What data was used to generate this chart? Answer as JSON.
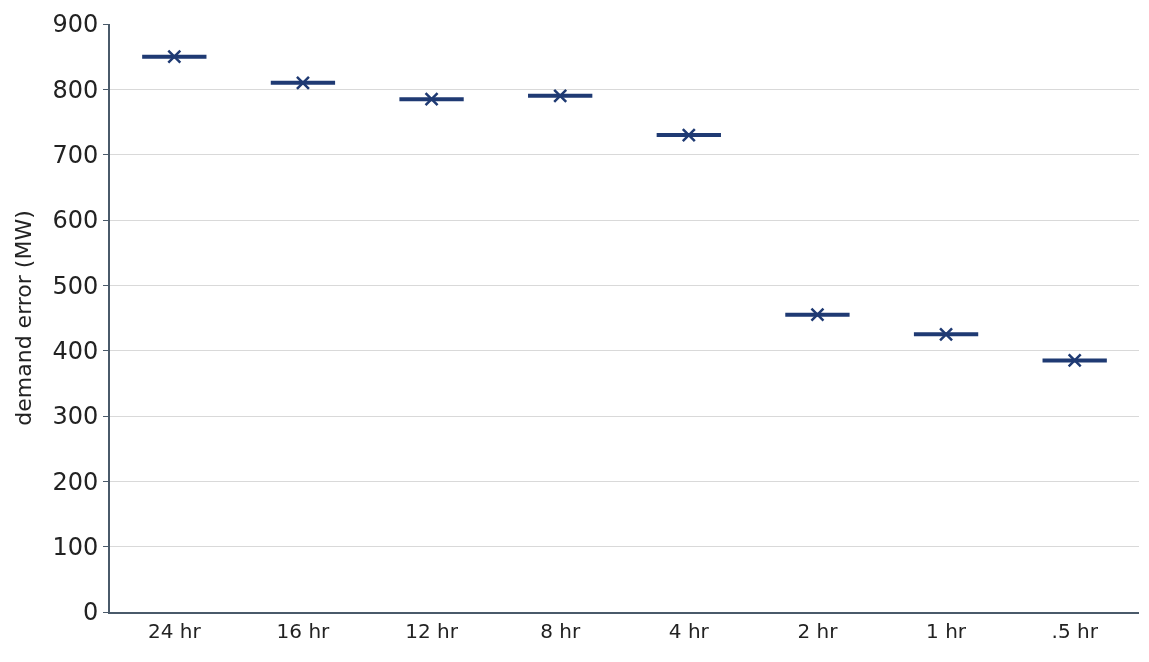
{
  "chart_data": {
    "type": "box",
    "ylabel": "demand error (MW)",
    "categories": [
      "24 hr",
      "16 hr",
      "12 hr",
      "8 hr",
      "4 hr",
      "2 hr",
      "1 hr",
      ".5 hr"
    ],
    "boxes": [
      {
        "low": 850,
        "q1": 850,
        "median": 850,
        "q3": 850,
        "high": 850,
        "mean": 850
      },
      {
        "low": 810,
        "q1": 810,
        "median": 810,
        "q3": 810,
        "high": 810,
        "mean": 810
      },
      {
        "low": 785,
        "q1": 785,
        "median": 785,
        "q3": 785,
        "high": 785,
        "mean": 785
      },
      {
        "low": 790,
        "q1": 790,
        "median": 790,
        "q3": 790,
        "high": 790,
        "mean": 790
      },
      {
        "low": 730,
        "q1": 730,
        "median": 730,
        "q3": 730,
        "high": 730,
        "mean": 730
      },
      {
        "low": 455,
        "q1": 455,
        "median": 455,
        "q3": 455,
        "high": 455,
        "mean": 455
      },
      {
        "low": 425,
        "q1": 425,
        "median": 425,
        "q3": 425,
        "high": 425,
        "mean": 425
      },
      {
        "low": 385,
        "q1": 385,
        "median": 385,
        "q3": 385,
        "high": 385,
        "mean": 385
      }
    ],
    "color": "#1f3a73",
    "ylim": [
      0,
      900
    ],
    "yticks": [
      0,
      100,
      200,
      300,
      400,
      500,
      600,
      700,
      800,
      900
    ],
    "grid": "y"
  }
}
